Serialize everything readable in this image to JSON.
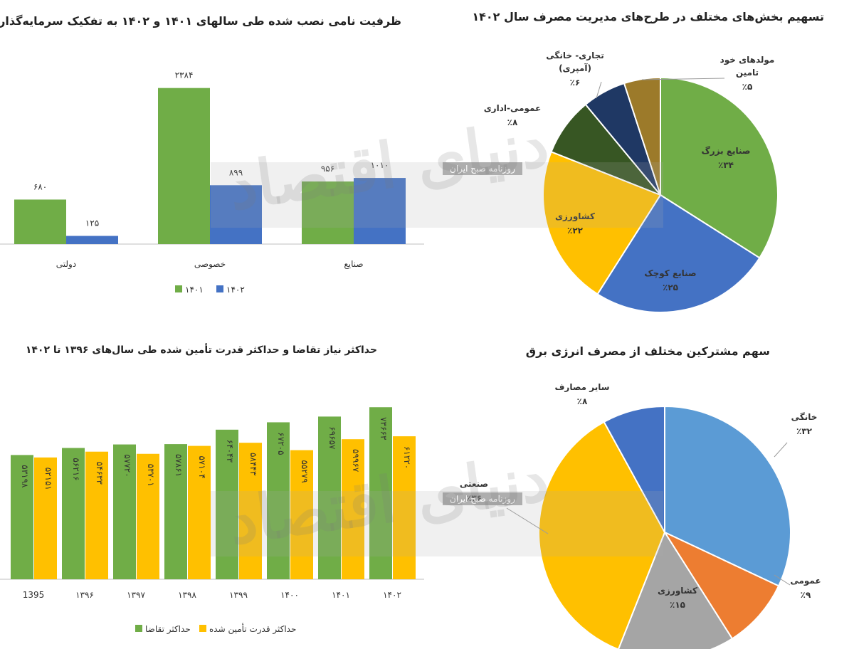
{
  "watermark": {
    "text": "روزنامه صبح ایران",
    "logo_text": "دنیای اقتصاد"
  },
  "colors": {
    "green": "#70ad47",
    "blue": "#4472c4",
    "yellow": "#ffc000",
    "dark_green": "#375623",
    "dark_blue": "#1f3864",
    "brown": "#9c7a2a",
    "light_blue": "#5b9bd5",
    "orange": "#ed7d31",
    "gray": "#a5a5a5"
  },
  "chart_data": [
    {
      "id": "installed-capacity",
      "type": "bar",
      "title": "ظرفیت نامی نصب شده طی سالهای ۱۴۰۱ و ۱۴۰۲ به تفکیک سرمایه‌گذار",
      "categories": [
        "صنایع",
        "خصوصی",
        "دولتی"
      ],
      "series": [
        {
          "name": "۱۴۰۱",
          "values": [
            956,
            2384,
            680
          ],
          "labels": [
            "۹۵۶",
            "۲۳۸۴",
            "۶۸۰"
          ]
        },
        {
          "name": "۱۴۰۲",
          "values": [
            1010,
            899,
            125
          ],
          "labels": [
            "۱۰۱۰",
            "۸۹۹",
            "۱۲۵"
          ]
        }
      ],
      "ylim": [
        0,
        2500
      ],
      "legend": "bottom"
    },
    {
      "id": "demand-supply",
      "type": "bar",
      "title": "حداکثر نیاز تقاضا و حداکثر قدرت تأمین شده طی سال‌های ۱۳۹۶ تا ۱۴۰۲",
      "categories": [
        "1395",
        "۱۳۹۶",
        "۱۳۹۷",
        "۱۳۹۸",
        "۱۳۹۹",
        "۱۴۰۰",
        "۱۴۰۱",
        "۱۴۰۲"
      ],
      "series": [
        {
          "name": "حداکثر تقاضا",
          "values": [
            53198,
            56216,
            57720,
            57861,
            64043,
            67205,
            69657,
            73663
          ],
          "labels": [
            "۵۳۱۹۸",
            "۵۶۲۱۶",
            "۵۷۷۲۰",
            "۵۷۸۶۱",
            "۶۴۰۴۳",
            "۶۷۲۰۵",
            "۶۹۶۵۷",
            "۷۳۶۶۳"
          ]
        },
        {
          "name": "حداکثر قدرت تأمین شده",
          "values": [
            52151,
            54633,
            53701,
            57104,
            58443,
            55279,
            59967,
            61220
          ],
          "labels": [
            "۵۲۱۵۱",
            "۵۴۶۳۳",
            "۵۳۷۰۱",
            "۵۷۱۰۴",
            "۵۸۴۴۳",
            "۵۵۲۷۹",
            "۵۹۹۶۷",
            "۶۱۲۲۰"
          ]
        }
      ],
      "ylim": [
        0,
        78000
      ],
      "legend": "bottom"
    },
    {
      "id": "demand-management-share",
      "type": "pie",
      "title": "تسهیم بخش‌های مختلف در طرح‌های مدیریت مصرف سال ۱۴۰۲",
      "slices": [
        {
          "label": "صنایع بزرگ",
          "value": 34,
          "pct": "٪۳۴",
          "color": "#70ad47"
        },
        {
          "label": "صنایع کوچک",
          "value": 25,
          "pct": "٪۲۵",
          "color": "#4472c4"
        },
        {
          "label": "کشاورزی",
          "value": 22,
          "pct": "٪۲۲",
          "color": "#ffc000"
        },
        {
          "label": "عمومی-اداری",
          "value": 8,
          "pct": "٪۸",
          "color": "#375623"
        },
        {
          "label": "تجاری- خانگی",
          "label2": "(آمپری)",
          "value": 6,
          "pct": "٪۶",
          "color": "#1f3864"
        },
        {
          "label": "مولدهای خود",
          "label2": "تامین",
          "value": 5,
          "pct": "٪۵",
          "color": "#9c7a2a"
        }
      ]
    },
    {
      "id": "consumption-share",
      "type": "pie",
      "title": "سهم مشترکین مختلف از مصرف انرژی برق",
      "slices": [
        {
          "label": "خانگی",
          "value": 32,
          "pct": "٪۳۲",
          "color": "#5b9bd5"
        },
        {
          "label": "عمومی",
          "value": 9,
          "pct": "٪۹",
          "color": "#ed7d31"
        },
        {
          "label": "کشاورزی",
          "value": 15,
          "pct": "٪۱۵",
          "color": "#a5a5a5"
        },
        {
          "label": "صنعتی",
          "value": 36,
          "pct": "٪۳۶",
          "color": "#ffc000"
        },
        {
          "label": "سایر مصارف",
          "value": 8,
          "pct": "٪۸",
          "color": "#4472c4"
        }
      ]
    }
  ]
}
